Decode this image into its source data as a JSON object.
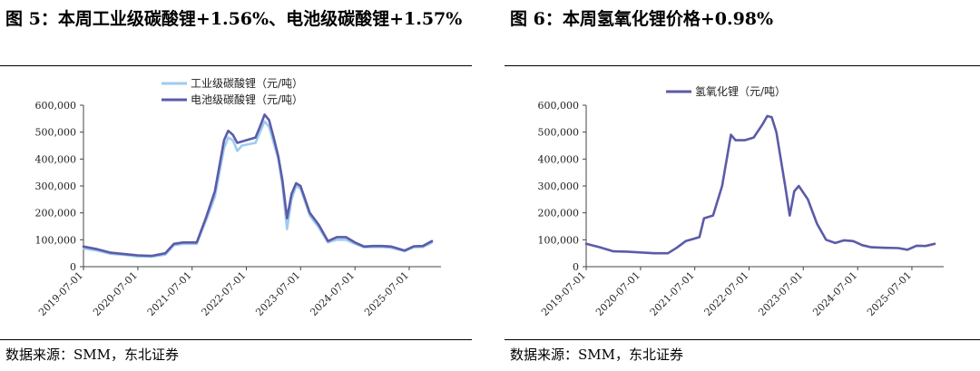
{
  "colors": {
    "industrial": "#9ecbf0",
    "battery": "#5b5ba8",
    "hydroxide": "#5b5ba8",
    "axis": "#444444",
    "rule": "#000000"
  },
  "left_panel": {
    "title": "图 5：本周工业级碳酸锂+1.56%、电池级碳酸锂+1.57%",
    "source": "数据来源：SMM，东北证券"
  },
  "right_panel": {
    "title": "图 6：本周氢氧化锂价格+0.98%",
    "source": "数据来源：SMM，东北证券"
  },
  "chart_data": [
    {
      "type": "line",
      "title": "图 5：本周工业级碳酸锂+1.56%、电池级碳酸锂+1.57%",
      "xlabel": "",
      "ylabel": "",
      "x_range": [
        "2019-07-01",
        "2026-01-31"
      ],
      "ylim": [
        0,
        600000
      ],
      "y_ticks": [
        "0",
        "100,000",
        "200,000",
        "300,000",
        "400,000",
        "500,000",
        "600,000"
      ],
      "x_ticks": [
        "2019-07-01",
        "2020-07-01",
        "2021-07-01",
        "2022-07-01",
        "2023-07-01",
        "2024-07-01",
        "2025-07-01"
      ],
      "grid": false,
      "legend": "top-center",
      "series": [
        {
          "name": "工业级碳酸锂（元/吨）",
          "color": "#9ecbf0",
          "points": [
            [
              "2019-07-01",
              68000
            ],
            [
              "2019-10-01",
              60000
            ],
            [
              "2020-01-01",
              48000
            ],
            [
              "2020-04-01",
              44000
            ],
            [
              "2020-07-01",
              38000
            ],
            [
              "2020-10-01",
              37000
            ],
            [
              "2021-01-01",
              45000
            ],
            [
              "2021-03-01",
              80000
            ],
            [
              "2021-05-01",
              85000
            ],
            [
              "2021-08-01",
              85000
            ],
            [
              "2021-10-01",
              170000
            ],
            [
              "2021-12-01",
              260000
            ],
            [
              "2022-02-01",
              440000
            ],
            [
              "2022-03-01",
              480000
            ],
            [
              "2022-04-01",
              470000
            ],
            [
              "2022-05-01",
              430000
            ],
            [
              "2022-06-01",
              450000
            ],
            [
              "2022-09-01",
              460000
            ],
            [
              "2022-10-01",
              500000
            ],
            [
              "2022-11-01",
              540000
            ],
            [
              "2022-12-01",
              520000
            ],
            [
              "2023-01-01",
              460000
            ],
            [
              "2023-02-01",
              400000
            ],
            [
              "2023-03-01",
              300000
            ],
            [
              "2023-04-01",
              140000
            ],
            [
              "2023-05-01",
              250000
            ],
            [
              "2023-06-01",
              300000
            ],
            [
              "2023-07-01",
              290000
            ],
            [
              "2023-09-01",
              190000
            ],
            [
              "2023-11-01",
              145000
            ],
            [
              "2024-01-01",
              90000
            ],
            [
              "2024-03-01",
              100000
            ],
            [
              "2024-05-01",
              100000
            ],
            [
              "2024-07-01",
              85000
            ],
            [
              "2024-09-01",
              72000
            ],
            [
              "2024-11-01",
              73000
            ],
            [
              "2025-01-01",
              73000
            ],
            [
              "2025-03-01",
              70000
            ],
            [
              "2025-05-01",
              62000
            ],
            [
              "2025-06-01",
              58000
            ],
            [
              "2025-08-01",
              72000
            ],
            [
              "2025-10-01",
              73000
            ],
            [
              "2025-12-01",
              90000
            ]
          ]
        },
        {
          "name": "电池级碳酸锂（元/吨）",
          "color": "#5b5ba8",
          "points": [
            [
              "2019-07-01",
              75000
            ],
            [
              "2019-10-01",
              65000
            ],
            [
              "2020-01-01",
              52000
            ],
            [
              "2020-04-01",
              47000
            ],
            [
              "2020-07-01",
              42000
            ],
            [
              "2020-10-01",
              40000
            ],
            [
              "2021-01-01",
              50000
            ],
            [
              "2021-03-01",
              85000
            ],
            [
              "2021-05-01",
              90000
            ],
            [
              "2021-08-01",
              90000
            ],
            [
              "2021-10-01",
              180000
            ],
            [
              "2021-12-01",
              280000
            ],
            [
              "2022-02-01",
              470000
            ],
            [
              "2022-03-01",
              505000
            ],
            [
              "2022-04-01",
              490000
            ],
            [
              "2022-05-01",
              460000
            ],
            [
              "2022-06-01",
              465000
            ],
            [
              "2022-09-01",
              480000
            ],
            [
              "2022-10-01",
              520000
            ],
            [
              "2022-11-01",
              565000
            ],
            [
              "2022-12-01",
              545000
            ],
            [
              "2023-01-01",
              480000
            ],
            [
              "2023-02-01",
              410000
            ],
            [
              "2023-03-01",
              320000
            ],
            [
              "2023-04-01",
              180000
            ],
            [
              "2023-05-01",
              270000
            ],
            [
              "2023-06-01",
              310000
            ],
            [
              "2023-07-01",
              300000
            ],
            [
              "2023-09-01",
              200000
            ],
            [
              "2023-11-01",
              155000
            ],
            [
              "2024-01-01",
              95000
            ],
            [
              "2024-03-01",
              110000
            ],
            [
              "2024-05-01",
              110000
            ],
            [
              "2024-07-01",
              90000
            ],
            [
              "2024-09-01",
              75000
            ],
            [
              "2024-11-01",
              77000
            ],
            [
              "2025-01-01",
              77000
            ],
            [
              "2025-03-01",
              75000
            ],
            [
              "2025-05-01",
              65000
            ],
            [
              "2025-06-01",
              60000
            ],
            [
              "2025-08-01",
              76000
            ],
            [
              "2025-10-01",
              77000
            ],
            [
              "2025-12-01",
              95000
            ]
          ]
        }
      ]
    },
    {
      "type": "line",
      "title": "图 6：本周氢氧化锂价格+0.98%",
      "xlabel": "",
      "ylabel": "",
      "x_range": [
        "2019-07-01",
        "2026-01-31"
      ],
      "ylim": [
        0,
        600000
      ],
      "y_ticks": [
        "0",
        "100,000",
        "200,000",
        "300,000",
        "400,000",
        "500,000",
        "600,000"
      ],
      "x_ticks": [
        "2019-07-01",
        "2020-07-01",
        "2021-07-01",
        "2022-07-01",
        "2023-07-01",
        "2024-07-01",
        "2025-07-01"
      ],
      "grid": false,
      "legend": "top-center",
      "series": [
        {
          "name": "氢氧化锂（元/吨）",
          "color": "#5b5ba8",
          "points": [
            [
              "2019-07-01",
              85000
            ],
            [
              "2019-10-01",
              72000
            ],
            [
              "2020-01-01",
              57000
            ],
            [
              "2020-04-01",
              56000
            ],
            [
              "2020-07-01",
              53000
            ],
            [
              "2020-10-01",
              50000
            ],
            [
              "2021-01-01",
              50000
            ],
            [
              "2021-03-01",
              70000
            ],
            [
              "2021-05-01",
              95000
            ],
            [
              "2021-08-01",
              110000
            ],
            [
              "2021-09-01",
              180000
            ],
            [
              "2021-11-01",
              190000
            ],
            [
              "2022-01-01",
              300000
            ],
            [
              "2022-03-01",
              490000
            ],
            [
              "2022-04-01",
              470000
            ],
            [
              "2022-06-01",
              470000
            ],
            [
              "2022-08-01",
              480000
            ],
            [
              "2022-10-01",
              530000
            ],
            [
              "2022-11-01",
              560000
            ],
            [
              "2022-12-01",
              555000
            ],
            [
              "2023-01-01",
              500000
            ],
            [
              "2023-03-01",
              300000
            ],
            [
              "2023-04-01",
              190000
            ],
            [
              "2023-05-01",
              280000
            ],
            [
              "2023-06-01",
              300000
            ],
            [
              "2023-08-01",
              250000
            ],
            [
              "2023-10-01",
              160000
            ],
            [
              "2023-12-01",
              100000
            ],
            [
              "2024-02-01",
              88000
            ],
            [
              "2024-04-01",
              98000
            ],
            [
              "2024-06-01",
              95000
            ],
            [
              "2024-08-01",
              80000
            ],
            [
              "2024-10-01",
              72000
            ],
            [
              "2025-01-01",
              70000
            ],
            [
              "2025-04-01",
              69000
            ],
            [
              "2025-06-01",
              63000
            ],
            [
              "2025-08-01",
              78000
            ],
            [
              "2025-10-01",
              77000
            ],
            [
              "2025-12-01",
              85000
            ]
          ]
        }
      ]
    }
  ]
}
